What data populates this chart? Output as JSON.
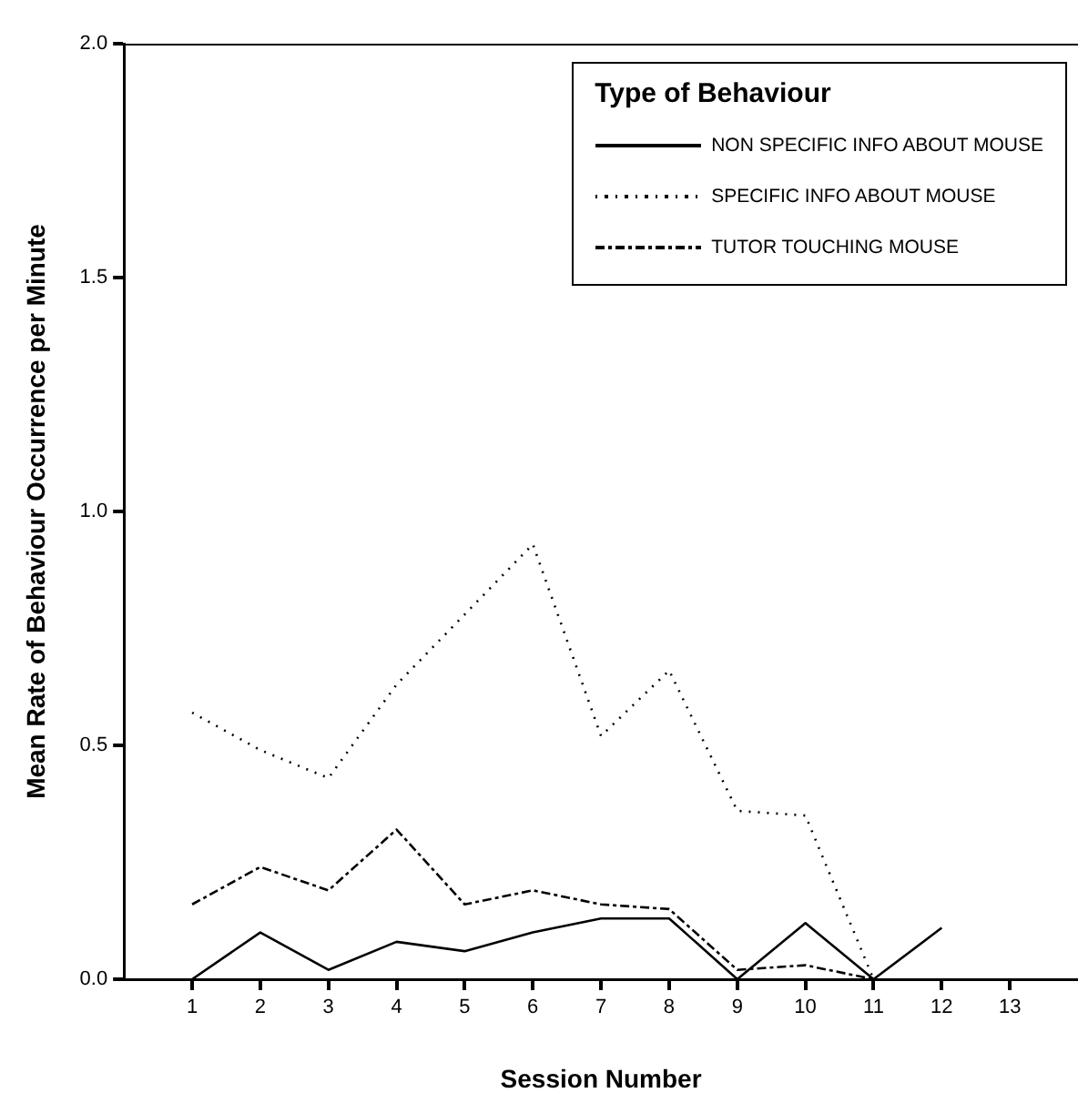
{
  "chart_data": {
    "type": "line",
    "xlabel": "Session Number",
    "ylabel": "Mean Rate of Behaviour Occurrence per Minute",
    "legend_title": "Type of Behaviour",
    "legend": "top right",
    "grid": false,
    "marker": "none",
    "x": [
      1,
      2,
      3,
      4,
      5,
      6,
      7,
      8,
      9,
      10,
      11,
      12
    ],
    "xlim": [
      0,
      14
    ],
    "xticks": [
      1,
      2,
      3,
      4,
      5,
      6,
      7,
      8,
      9,
      10,
      11,
      12,
      13
    ],
    "ylim": [
      0,
      2
    ],
    "yticks": [
      {
        "value": 0,
        "label": "0.0"
      },
      {
        "value": 0.5,
        "label": "0.5"
      },
      {
        "value": 1,
        "label": "1.0"
      },
      {
        "value": 1.5,
        "label": "1.5"
      },
      {
        "value": 2,
        "label": "2.0"
      }
    ],
    "series": [
      {
        "name": "NON SPECIFIC INFO ABOUT MOUSE",
        "color": "#000000",
        "line_style": "solid",
        "values": [
          0,
          0.1,
          0.02,
          0.08,
          0.06,
          0.1,
          0.13,
          0.13,
          0,
          0.12,
          0,
          0.11
        ]
      },
      {
        "name": "SPECIFIC INFO ABOUT MOUSE",
        "color": "#000000",
        "line_style": "dotted",
        "values": [
          0.57,
          0.49,
          0.43,
          0.63,
          0.78,
          0.93,
          0.52,
          0.66,
          0.36,
          0.35,
          0,
          null
        ]
      },
      {
        "name": "TUTOR TOUCHING MOUSE",
        "color": "#000000",
        "line_style": "dashed",
        "values": [
          0.16,
          0.24,
          0.19,
          0.32,
          0.16,
          0.19,
          0.16,
          0.15,
          0.02,
          0.03,
          0,
          null
        ]
      }
    ]
  }
}
